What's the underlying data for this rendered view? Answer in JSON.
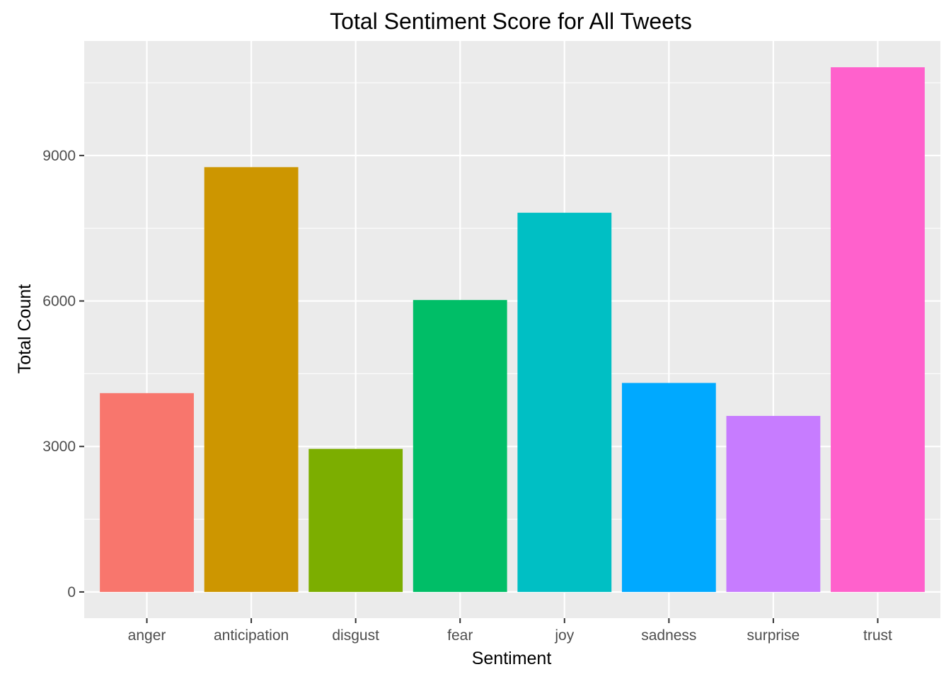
{
  "chart_data": {
    "type": "bar",
    "title": "Total Sentiment Score for All Tweets",
    "xlabel": "Sentiment",
    "ylabel": "Total Count",
    "categories": [
      "anger",
      "anticipation",
      "disgust",
      "fear",
      "joy",
      "sadness",
      "surprise",
      "trust"
    ],
    "values": [
      4100,
      8760,
      2950,
      6020,
      7820,
      4310,
      3630,
      10820
    ],
    "colors": [
      "#F8766D",
      "#CD9600",
      "#7CAE00",
      "#00BE67",
      "#00BFC4",
      "#00A9FF",
      "#C77CFF",
      "#FF61CC"
    ],
    "yticks": [
      0,
      3000,
      6000,
      9000
    ],
    "yticks_labels": [
      "0",
      "3000",
      "6000",
      "9000"
    ],
    "ylim": [
      -541,
      11361
    ],
    "grid": true,
    "legend": "none",
    "panel_background": "#EBEBEB",
    "gridline_color": "#FFFFFF"
  }
}
